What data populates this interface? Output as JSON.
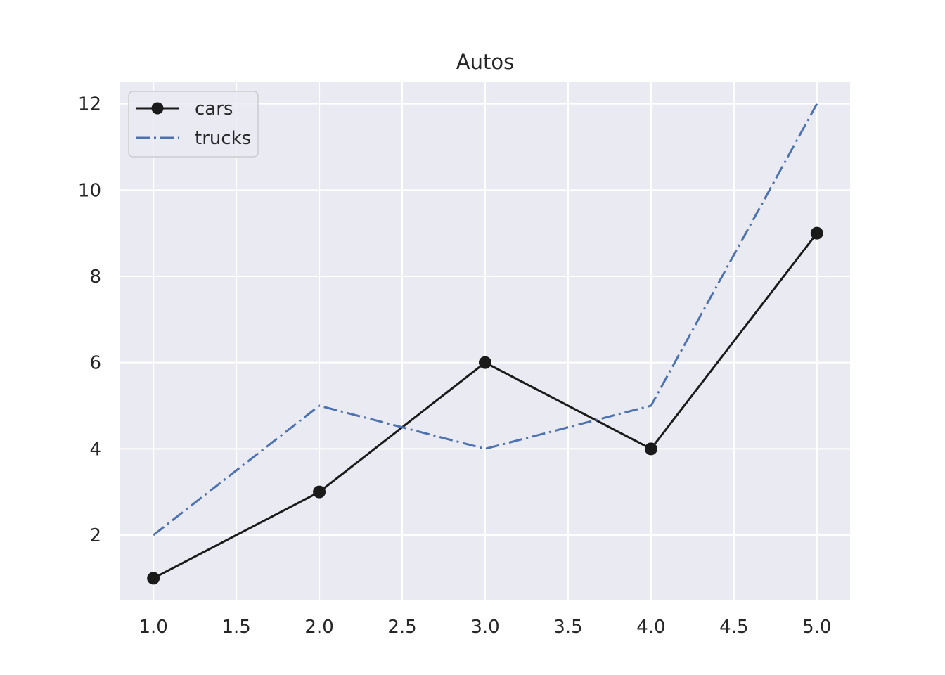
{
  "chart_data": {
    "type": "line",
    "title": "Autos",
    "xlabel": "",
    "ylabel": "",
    "x": [
      1,
      2,
      3,
      4,
      5
    ],
    "xlim": [
      0.8,
      5.2
    ],
    "ylim": [
      0.5,
      12.5
    ],
    "xticks": [
      1.0,
      1.5,
      2.0,
      2.5,
      3.0,
      3.5,
      4.0,
      4.5,
      5.0
    ],
    "xtick_labels": [
      "1.0",
      "1.5",
      "2.0",
      "2.5",
      "3.0",
      "3.5",
      "4.0",
      "4.5",
      "5.0"
    ],
    "yticks": [
      2,
      4,
      6,
      8,
      10,
      12
    ],
    "ytick_labels": [
      "2",
      "4",
      "6",
      "8",
      "10",
      "12"
    ],
    "grid": true,
    "legend_position": "top-left",
    "series": [
      {
        "name": "cars",
        "values": [
          1,
          3,
          6,
          4,
          9
        ],
        "color": "#1a1a1a",
        "line_style": "solid",
        "marker": "circle"
      },
      {
        "name": "trucks",
        "values": [
          2,
          5,
          4,
          5,
          12
        ],
        "color": "#4c72b0",
        "line_style": "dash-dot",
        "marker": "none"
      }
    ],
    "colors": {
      "plot_background": "#eaeaf2",
      "grid": "#ffffff",
      "text": "#262626"
    }
  }
}
